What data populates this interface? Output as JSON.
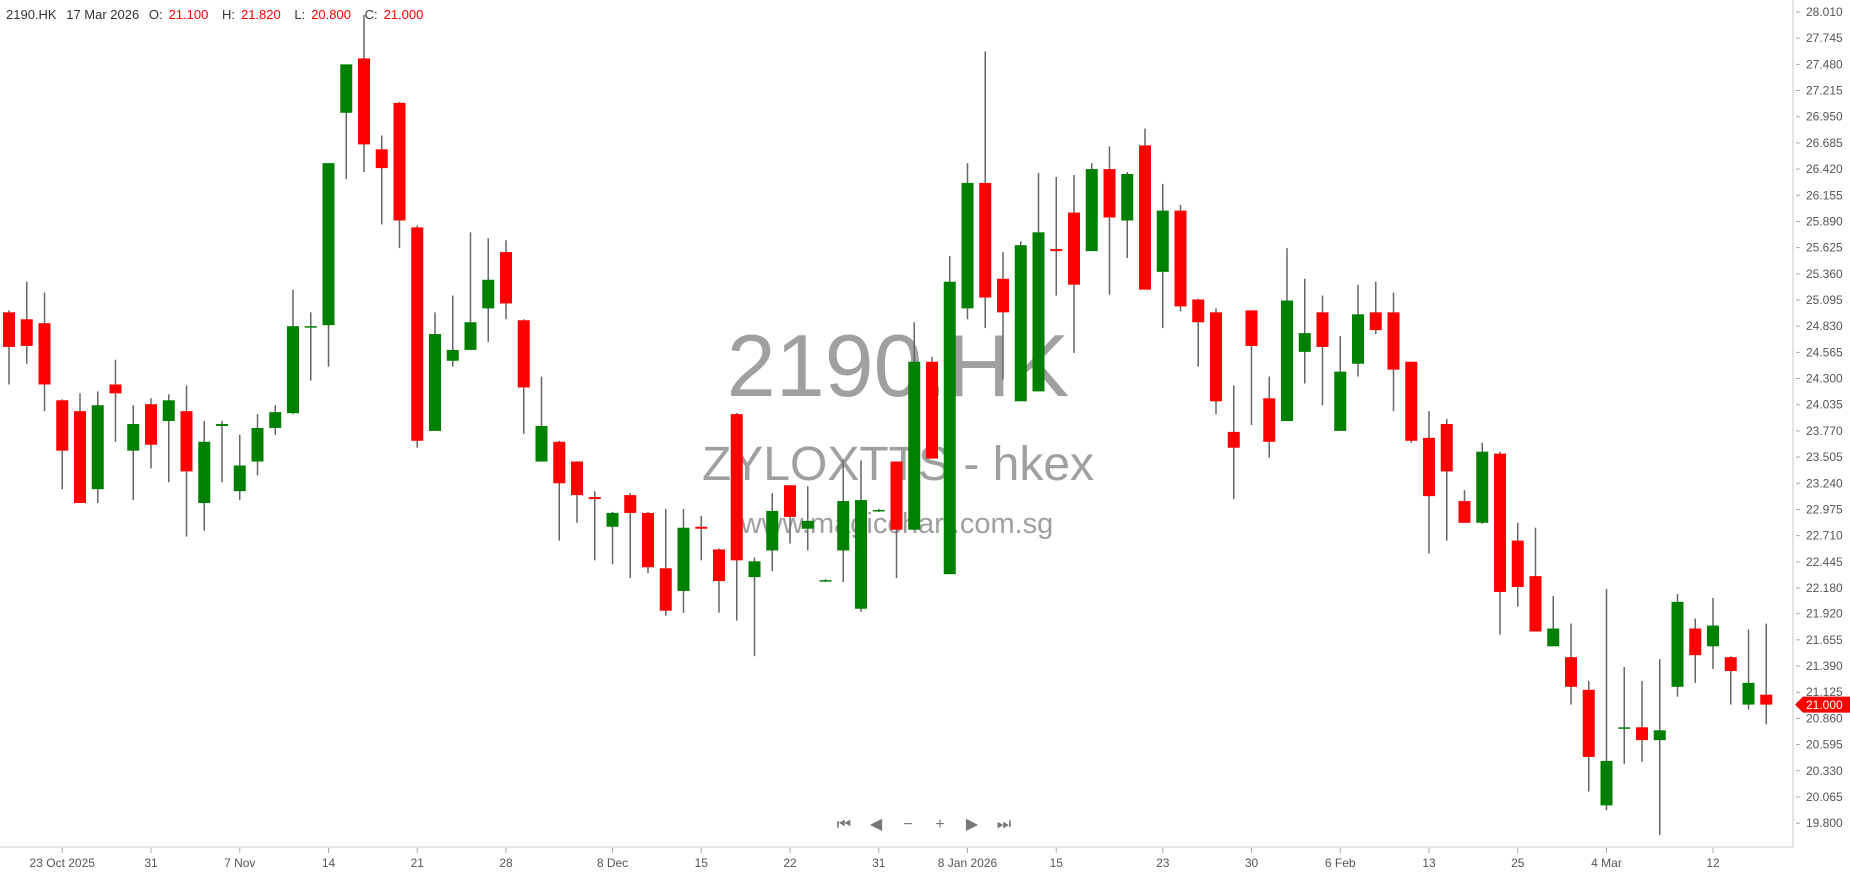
{
  "header": {
    "symbol": "2190.HK",
    "date": "17 Mar 2026",
    "open_label": "O:",
    "open": "21.100",
    "high_label": "H:",
    "high": "21.820",
    "low_label": "L:",
    "low": "20.800",
    "close_label": "C:",
    "close": "21.000"
  },
  "watermark": {
    "symbol": "2190.HK",
    "name": "ZYLOXTTS - hkex",
    "site": "www.magicchart.com.sg"
  },
  "nav": {
    "first_icon": "skip-to-start-icon",
    "prev_icon": "step-back-icon",
    "zoom_out_icon": "minus-icon",
    "zoom_in_icon": "plus-icon",
    "next_icon": "step-forward-icon",
    "last_icon": "skip-to-end-icon"
  },
  "colors": {
    "up": "#008000",
    "down": "#ff0000",
    "wick": "#666666",
    "last_price": "#ff0000"
  },
  "chart_data": {
    "type": "candlestick",
    "ylim": [
      19.8,
      28.01
    ],
    "grid": false,
    "last_price": "21.000",
    "y_ticks": [
      "28.010",
      "27.745",
      "27.480",
      "27.215",
      "26.950",
      "26.685",
      "26.420",
      "26.155",
      "25.890",
      "25.625",
      "25.360",
      "25.095",
      "24.830",
      "24.565",
      "24.300",
      "24.035",
      "23.770",
      "23.505",
      "23.240",
      "22.975",
      "22.710",
      "22.445",
      "22.180",
      "21.920",
      "21.655",
      "21.390",
      "21.125",
      "20.860",
      "20.595",
      "20.330",
      "20.065",
      "19.800"
    ],
    "x_ticks": [
      {
        "index": 3,
        "label": "23 Oct 2025"
      },
      {
        "index": 8,
        "label": "31"
      },
      {
        "index": 13,
        "label": "7 Nov"
      },
      {
        "index": 18,
        "label": "14"
      },
      {
        "index": 23,
        "label": "21"
      },
      {
        "index": 28,
        "label": "28"
      },
      {
        "index": 34,
        "label": "8 Dec"
      },
      {
        "index": 39,
        "label": "15"
      },
      {
        "index": 44,
        "label": "22"
      },
      {
        "index": 49,
        "label": "31"
      },
      {
        "index": 54,
        "label": "8 Jan 2026"
      },
      {
        "index": 59,
        "label": "15"
      },
      {
        "index": 65,
        "label": "23"
      },
      {
        "index": 70,
        "label": "30"
      },
      {
        "index": 75,
        "label": "6 Feb"
      },
      {
        "index": 80,
        "label": "13"
      },
      {
        "index": 85,
        "label": "25"
      },
      {
        "index": 90,
        "label": "4 Mar"
      },
      {
        "index": 96,
        "label": "12"
      }
    ],
    "ohlc_fields": [
      "open",
      "high",
      "low",
      "close"
    ],
    "ohlc": [
      [
        24.97,
        24.99,
        24.24,
        24.62
      ],
      [
        24.9,
        25.28,
        24.45,
        24.63
      ],
      [
        24.86,
        25.17,
        23.97,
        24.24
      ],
      [
        24.08,
        24.09,
        23.18,
        23.57
      ],
      [
        23.97,
        24.15,
        23.04,
        23.04
      ],
      [
        23.18,
        24.17,
        23.04,
        24.03
      ],
      [
        24.24,
        24.49,
        23.66,
        24.15
      ],
      [
        23.57,
        24.03,
        23.07,
        23.84
      ],
      [
        24.04,
        24.1,
        23.39,
        23.63
      ],
      [
        23.87,
        24.14,
        23.25,
        24.08
      ],
      [
        23.97,
        24.23,
        22.7,
        23.36
      ],
      [
        23.04,
        23.87,
        22.76,
        23.66
      ],
      [
        23.82,
        23.87,
        23.25,
        23.84
      ],
      [
        23.16,
        23.73,
        23.07,
        23.42
      ],
      [
        23.46,
        23.94,
        23.32,
        23.8
      ],
      [
        23.8,
        24.03,
        23.73,
        23.96
      ],
      [
        23.95,
        25.2,
        23.94,
        24.83
      ],
      [
        24.82,
        24.97,
        24.28,
        24.83
      ],
      [
        24.84,
        26.48,
        24.42,
        26.48
      ],
      [
        26.99,
        27.48,
        26.32,
        27.48
      ],
      [
        27.54,
        27.98,
        26.39,
        26.67
      ],
      [
        26.62,
        26.76,
        25.86,
        26.43
      ],
      [
        27.09,
        27.1,
        25.62,
        25.9
      ],
      [
        25.83,
        25.85,
        23.6,
        23.67
      ],
      [
        23.77,
        24.97,
        23.77,
        24.75
      ],
      [
        24.48,
        25.14,
        24.42,
        24.59
      ],
      [
        24.59,
        25.78,
        24.59,
        24.87
      ],
      [
        25.01,
        25.72,
        24.67,
        25.3
      ],
      [
        25.58,
        25.7,
        24.9,
        25.06
      ],
      [
        24.89,
        24.9,
        23.74,
        24.21
      ],
      [
        23.46,
        24.32,
        23.46,
        23.82
      ],
      [
        23.66,
        23.67,
        22.66,
        23.24
      ],
      [
        23.46,
        23.46,
        22.84,
        23.12
      ],
      [
        23.1,
        23.16,
        22.46,
        23.08
      ],
      [
        22.8,
        22.95,
        22.42,
        22.94
      ],
      [
        23.12,
        23.14,
        22.28,
        22.94
      ],
      [
        22.94,
        22.95,
        22.33,
        22.39
      ],
      [
        22.38,
        22.98,
        21.9,
        21.95
      ],
      [
        22.15,
        22.98,
        21.93,
        22.79
      ],
      [
        22.8,
        22.91,
        22.46,
        22.78
      ],
      [
        22.57,
        22.58,
        21.93,
        22.25
      ],
      [
        23.94,
        23.95,
        21.85,
        22.46
      ],
      [
        22.29,
        22.49,
        21.49,
        22.45
      ],
      [
        22.56,
        23.14,
        22.35,
        22.96
      ],
      [
        23.22,
        23.22,
        22.63,
        22.9
      ],
      [
        22.78,
        23.21,
        22.56,
        22.86
      ],
      [
        22.25,
        22.27,
        22.24,
        22.26
      ],
      [
        22.56,
        23.48,
        22.24,
        23.06
      ],
      [
        21.97,
        23.47,
        21.94,
        23.07
      ],
      [
        22.96,
        22.98,
        22.95,
        22.97
      ],
      [
        23.46,
        23.46,
        22.28,
        22.77
      ],
      [
        22.77,
        24.87,
        22.77,
        24.47
      ],
      [
        24.47,
        24.52,
        23.49,
        23.49
      ],
      [
        22.32,
        25.54,
        22.32,
        25.28
      ],
      [
        25.01,
        26.48,
        24.9,
        26.28
      ],
      [
        26.28,
        27.61,
        24.81,
        25.12
      ],
      [
        25.31,
        25.58,
        24.29,
        24.97
      ],
      [
        24.07,
        25.69,
        24.07,
        25.65
      ],
      [
        24.17,
        26.38,
        24.17,
        25.78
      ],
      [
        25.61,
        26.34,
        25.14,
        25.59
      ],
      [
        25.98,
        26.36,
        24.56,
        25.25
      ],
      [
        25.59,
        26.48,
        25.59,
        26.42
      ],
      [
        26.42,
        26.65,
        25.15,
        25.93
      ],
      [
        25.9,
        26.39,
        25.52,
        26.37
      ],
      [
        26.66,
        26.83,
        25.2,
        25.2
      ],
      [
        25.38,
        26.27,
        24.81,
        26.0
      ],
      [
        26.0,
        26.06,
        24.98,
        25.03
      ],
      [
        25.1,
        25.11,
        24.42,
        24.87
      ],
      [
        24.97,
        25.01,
        23.94,
        24.07
      ],
      [
        23.76,
        24.23,
        23.08,
        23.6
      ],
      [
        24.99,
        24.99,
        23.83,
        24.63
      ],
      [
        24.1,
        24.32,
        23.5,
        23.66
      ],
      [
        23.87,
        25.62,
        23.87,
        25.09
      ],
      [
        24.57,
        25.31,
        24.25,
        24.76
      ],
      [
        24.97,
        25.14,
        24.03,
        24.62
      ],
      [
        23.77,
        24.73,
        23.77,
        24.37
      ],
      [
        24.45,
        25.25,
        24.32,
        24.95
      ],
      [
        24.97,
        25.28,
        24.75,
        24.79
      ],
      [
        24.97,
        25.17,
        23.97,
        24.39
      ],
      [
        24.47,
        24.47,
        23.65,
        23.67
      ],
      [
        23.7,
        23.97,
        22.53,
        23.11
      ],
      [
        23.84,
        23.89,
        22.66,
        23.36
      ],
      [
        23.06,
        23.17,
        22.84,
        22.84
      ],
      [
        22.84,
        23.65,
        22.83,
        23.56
      ],
      [
        23.54,
        23.56,
        21.71,
        22.14
      ],
      [
        22.66,
        22.84,
        21.99,
        22.19
      ],
      [
        22.3,
        22.79,
        21.74,
        21.74
      ],
      [
        21.59,
        22.1,
        21.59,
        21.77
      ],
      [
        21.48,
        21.82,
        21.0,
        21.18
      ],
      [
        21.15,
        21.24,
        20.12,
        20.47
      ],
      [
        19.98,
        22.17,
        19.93,
        20.43
      ],
      [
        20.76,
        21.38,
        20.4,
        20.77
      ],
      [
        20.77,
        21.24,
        20.42,
        20.64
      ],
      [
        20.64,
        21.46,
        19.68,
        20.74
      ],
      [
        21.18,
        22.12,
        21.08,
        22.04
      ],
      [
        21.77,
        21.87,
        21.22,
        21.5
      ],
      [
        21.59,
        22.08,
        21.36,
        21.8
      ],
      [
        21.48,
        21.49,
        21.0,
        21.34
      ],
      [
        21.0,
        21.76,
        20.95,
        21.22
      ],
      [
        21.1,
        21.82,
        20.8,
        21.0
      ]
    ]
  }
}
